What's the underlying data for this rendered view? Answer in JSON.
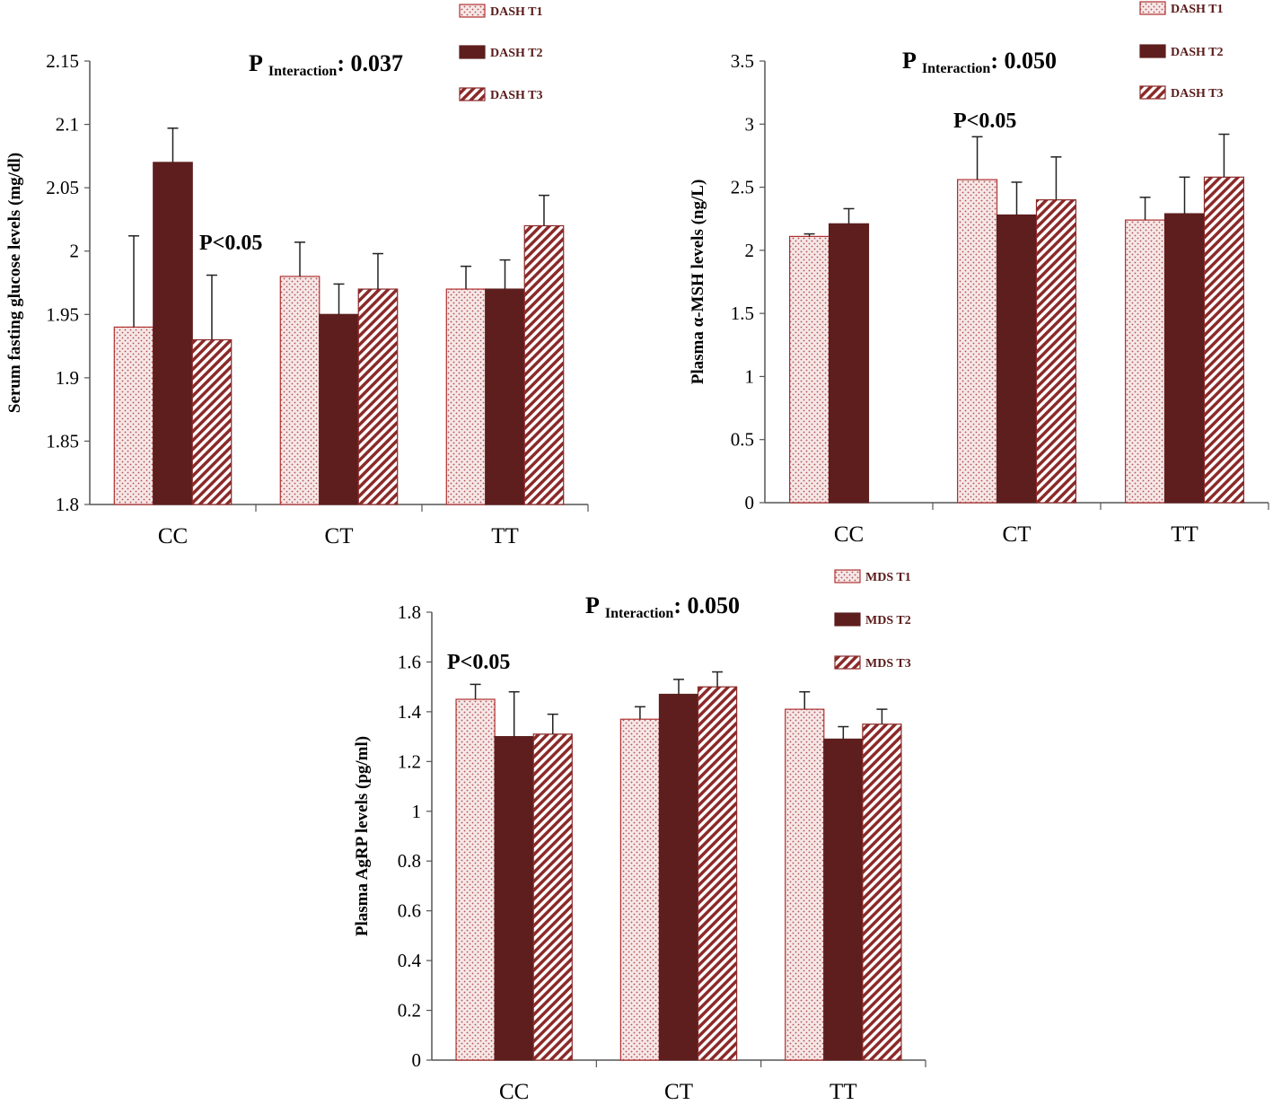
{
  "colors": {
    "t1_edge": "#b03030",
    "t1_dot": "#b05050",
    "t2_fill": "#5e1e1e",
    "t3_stripe": "#8b2a2a",
    "axis": "#555555"
  },
  "chart_data": [
    {
      "type": "bar",
      "ylabel": "Serum fasting glucose levels (mg/dl)",
      "categories": [
        "CC",
        "CT",
        "TT"
      ],
      "ylim": [
        1.8,
        2.15
      ],
      "yticks": [
        "1.8",
        "1.85",
        "1.9",
        "1.95",
        "2",
        "2.05",
        "2.1",
        "2.15"
      ],
      "p_interaction": {
        "prefix": "P",
        "sub": "Interaction",
        "value": ": 0.037"
      },
      "annotation": {
        "text": "P<0.05",
        "category": "CC"
      },
      "legend": [
        "DASH T1",
        "DASH T2",
        "DASH T3"
      ],
      "series": [
        {
          "name": "DASH T1",
          "values": [
            1.94,
            1.98,
            1.97
          ],
          "errors": [
            0.072,
            0.027,
            0.018
          ]
        },
        {
          "name": "DASH T2",
          "values": [
            2.07,
            1.95,
            1.97
          ],
          "errors": [
            0.027,
            0.024,
            0.023
          ]
        },
        {
          "name": "DASH T3",
          "values": [
            1.93,
            1.97,
            2.02
          ],
          "errors": [
            0.051,
            0.028,
            0.024
          ]
        }
      ]
    },
    {
      "type": "bar",
      "ylabel": "Plasma α-MSH levels (ng/L)",
      "categories": [
        "CC",
        "CT",
        "TT"
      ],
      "ylim": [
        0,
        3.5
      ],
      "yticks": [
        "0",
        "0.5",
        "1",
        "1.5",
        "2",
        "2.5",
        "3",
        "3.5"
      ],
      "p_interaction": {
        "prefix": "P",
        "sub": "Interaction",
        "value": ": 0.050"
      },
      "annotation": {
        "text": "P<0.05",
        "category": "CT"
      },
      "legend": [
        "DASH T1",
        "DASH T2",
        "DASH T3"
      ],
      "series": [
        {
          "name": "DASH T1",
          "values": [
            2.11,
            2.56,
            2.24
          ],
          "errors": [
            0.02,
            0.34,
            0.18
          ]
        },
        {
          "name": "DASH T2",
          "values": [
            2.21,
            2.28,
            2.29
          ],
          "errors": [
            0.12,
            0.26,
            0.29
          ]
        },
        {
          "name": "DASH T3",
          "values": [
            null,
            2.4,
            2.58
          ],
          "errors": [
            null,
            0.34,
            0.34
          ]
        }
      ]
    },
    {
      "type": "bar",
      "ylabel": "Plasma AgRP levels (pg/ml)",
      "categories": [
        "CC",
        "CT",
        "TT"
      ],
      "ylim": [
        0,
        1.8
      ],
      "yticks": [
        "0",
        "0.2",
        "0.4",
        "0.6",
        "0.8",
        "1",
        "1.2",
        "1.4",
        "1.6",
        "1.8"
      ],
      "p_interaction": {
        "prefix": "P",
        "sub": "Interaction",
        "value": ": 0.050"
      },
      "annotation": {
        "text": "P<0.05",
        "category": "CC"
      },
      "legend": [
        "MDS T1",
        "MDS T2",
        "MDS T3"
      ],
      "series": [
        {
          "name": "MDS T1",
          "values": [
            1.45,
            1.37,
            1.41
          ],
          "errors": [
            0.06,
            0.05,
            0.07
          ]
        },
        {
          "name": "MDS T2",
          "values": [
            1.3,
            1.47,
            1.29
          ],
          "errors": [
            0.18,
            0.06,
            0.05
          ]
        },
        {
          "name": "MDS T3",
          "values": [
            1.31,
            1.5,
            1.35
          ],
          "errors": [
            0.08,
            0.06,
            0.06
          ]
        }
      ]
    }
  ]
}
